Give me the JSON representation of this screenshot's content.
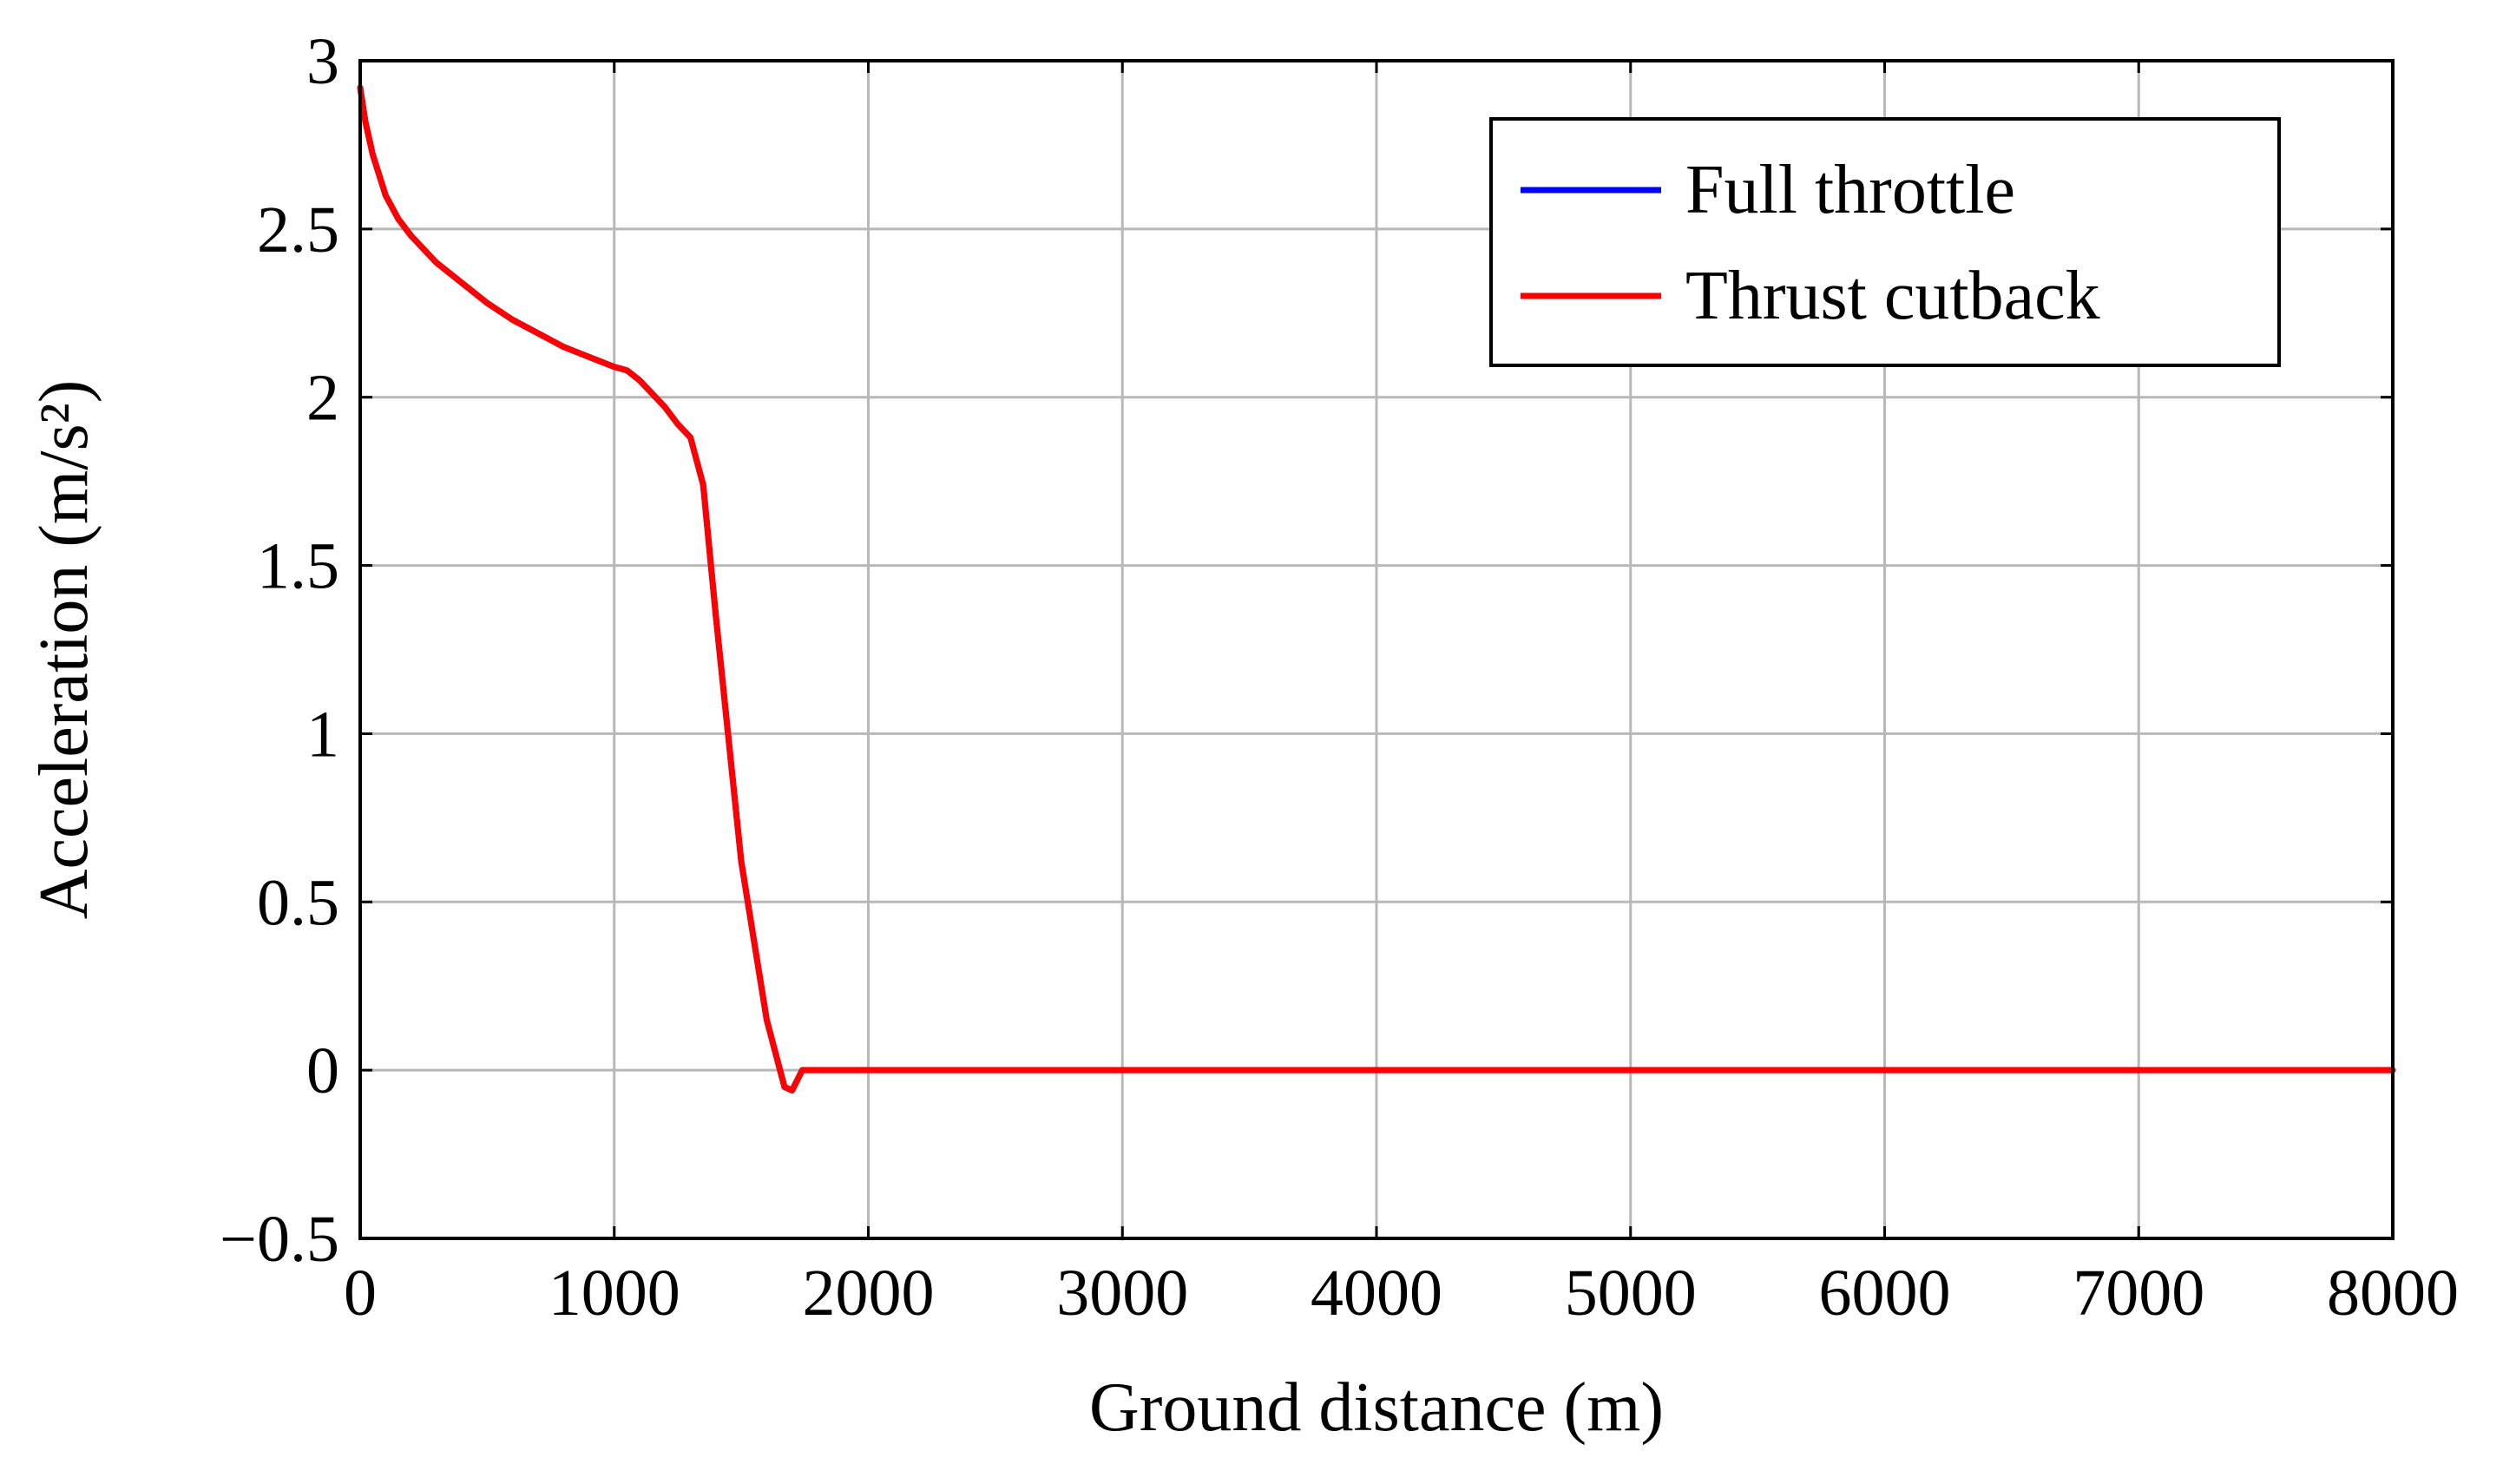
{
  "chart_data": {
    "type": "line",
    "title": "",
    "xlabel": "Ground distance (m)",
    "ylabel": "Acceleration (m/s²)",
    "xlim": [
      0,
      8000
    ],
    "ylim": [
      -0.5,
      3
    ],
    "x_ticks": [
      0,
      1000,
      2000,
      3000,
      4000,
      5000,
      6000,
      7000,
      8000
    ],
    "x_tick_labels": [
      "0",
      "1000",
      "2000",
      "3000",
      "4000",
      "5000",
      "6000",
      "7000",
      "8000"
    ],
    "y_ticks": [
      -0.5,
      0,
      0.5,
      1,
      1.5,
      2,
      2.5,
      3
    ],
    "y_tick_labels": [
      "−0.5",
      "0",
      "0.5",
      "1",
      "1.5",
      "2",
      "2.5",
      "3"
    ],
    "grid": true,
    "legend_position": "top-right",
    "series": [
      {
        "name": "Full throttle",
        "color": "#0000ff",
        "x": [
          0,
          20,
          50,
          100,
          150,
          200,
          300,
          400,
          500,
          600,
          700,
          800,
          900,
          1000,
          1050,
          1100,
          1150,
          1200,
          1250,
          1300,
          1350,
          1400,
          1500,
          1600,
          1670,
          1700,
          1740,
          2000,
          3000,
          4000,
          5000,
          6000,
          7000,
          8000
        ],
        "y": [
          2.92,
          2.82,
          2.72,
          2.6,
          2.53,
          2.48,
          2.4,
          2.34,
          2.28,
          2.23,
          2.19,
          2.15,
          2.12,
          2.09,
          2.08,
          2.05,
          2.01,
          1.97,
          1.92,
          1.88,
          1.74,
          1.35,
          0.62,
          0.15,
          -0.05,
          -0.06,
          0.0,
          0.0,
          0.0,
          0.0,
          0.0,
          0.0,
          0.0,
          0.0
        ]
      },
      {
        "name": "Thrust cutback",
        "color": "#ff0000",
        "x": [
          0,
          20,
          50,
          100,
          150,
          200,
          300,
          400,
          500,
          600,
          700,
          800,
          900,
          1000,
          1050,
          1100,
          1150,
          1200,
          1250,
          1300,
          1350,
          1400,
          1500,
          1600,
          1670,
          1700,
          1740,
          2000,
          3000,
          4000,
          5000,
          6000,
          7000,
          8000
        ],
        "y": [
          2.92,
          2.82,
          2.72,
          2.6,
          2.53,
          2.48,
          2.4,
          2.34,
          2.28,
          2.23,
          2.19,
          2.15,
          2.12,
          2.09,
          2.08,
          2.05,
          2.01,
          1.97,
          1.92,
          1.88,
          1.74,
          1.35,
          0.62,
          0.15,
          -0.05,
          -0.06,
          0.0,
          0.0,
          0.0,
          0.0,
          0.0,
          0.0,
          0.0,
          0.0
        ]
      }
    ]
  }
}
